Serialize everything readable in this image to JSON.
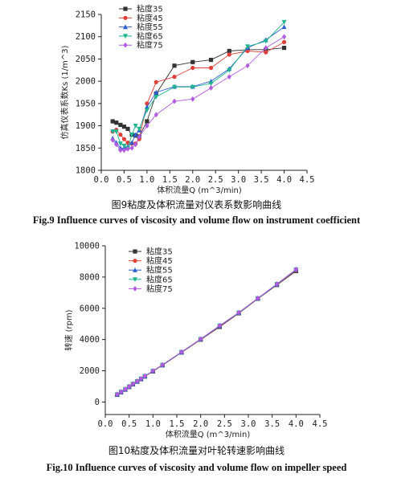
{
  "chart_data": [
    {
      "type": "line",
      "xlabel": "体积流量Q (m^3/min)",
      "ylabel": "仿真仪表系数Ks (1/m^3)",
      "xlim": [
        0.0,
        4.5
      ],
      "ylim": [
        1800,
        2150
      ],
      "xticks": [
        "0.0",
        "0.5",
        "1.0",
        "1.5",
        "2.0",
        "2.5",
        "3.0",
        "3.5",
        "4.0",
        "4.5"
      ],
      "yticks": [
        "1800",
        "1850",
        "1900",
        "1950",
        "2000",
        "2050",
        "2100",
        "2150"
      ],
      "legend_position": "top-left",
      "caption_cn": "图9粘度及体积流量对仪表系数影响曲线",
      "caption_en": "Fig.9    Influence curves of viscosity and volume flow on instrument coefficient",
      "series": [
        {
          "name": "粘度35",
          "color": "#333333",
          "marker": "square",
          "x": [
            0.25,
            0.33,
            0.42,
            0.5,
            0.58,
            0.67,
            0.75,
            0.83,
            1.0,
            1.2,
            1.6,
            2.0,
            2.4,
            2.8,
            3.2,
            3.6,
            4.0
          ],
          "y": [
            1910,
            1907,
            1902,
            1898,
            1893,
            1880,
            1878,
            1876,
            1910,
            1972,
            2035,
            2043,
            2048,
            2068,
            2071,
            2071,
            2075
          ]
        },
        {
          "name": "粘度45",
          "color": "#e0403a",
          "marker": "circle",
          "x": [
            0.25,
            0.33,
            0.42,
            0.5,
            0.58,
            0.67,
            0.75,
            0.83,
            1.0,
            1.2,
            1.6,
            2.0,
            2.4,
            2.8,
            3.2,
            3.6,
            4.0
          ],
          "y": [
            1887,
            1891,
            1880,
            1870,
            1862,
            1860,
            1860,
            1870,
            1950,
            1998,
            2010,
            2030,
            2030,
            2060,
            2068,
            2065,
            2088
          ]
        },
        {
          "name": "粘度55",
          "color": "#2d5fd0",
          "marker": "triangle-up",
          "x": [
            0.25,
            0.33,
            0.42,
            0.5,
            0.58,
            0.67,
            0.75,
            0.83,
            1.0,
            1.2,
            1.6,
            2.0,
            2.4,
            2.8,
            3.2,
            3.6,
            4.0
          ],
          "y": [
            1872,
            1862,
            1850,
            1850,
            1853,
            1862,
            1880,
            1890,
            1942,
            1975,
            1988,
            1988,
            2000,
            2028,
            2075,
            2093,
            2122
          ]
        },
        {
          "name": "粘度65",
          "color": "#1fb58f",
          "marker": "triangle-down",
          "x": [
            0.25,
            0.33,
            0.42,
            0.5,
            0.58,
            0.67,
            0.75,
            0.83,
            1.0,
            1.2,
            1.6,
            2.0,
            2.4,
            2.8,
            3.2,
            3.6,
            4.0
          ],
          "y": [
            1887,
            1887,
            1860,
            1855,
            1850,
            1880,
            1900,
            1893,
            1935,
            1965,
            1987,
            1987,
            1995,
            2025,
            2078,
            2090,
            2133
          ]
        },
        {
          "name": "粘度75",
          "color": "#b15be0",
          "marker": "diamond",
          "x": [
            0.25,
            0.33,
            0.42,
            0.5,
            0.58,
            0.67,
            0.75,
            0.83,
            1.0,
            1.2,
            1.6,
            2.0,
            2.4,
            2.8,
            3.2,
            3.6,
            4.0
          ],
          "y": [
            1868,
            1858,
            1845,
            1845,
            1848,
            1850,
            1858,
            1875,
            1900,
            1925,
            1955,
            1960,
            1985,
            2010,
            2035,
            2075,
            2100
          ]
        }
      ]
    },
    {
      "type": "line",
      "xlabel": "体积流量Q (m^3/min)",
      "ylabel": "转速 (rpm)",
      "xlim": [
        0.0,
        4.5
      ],
      "ylim": [
        -800,
        10000
      ],
      "xticks": [
        "0.0",
        "0.5",
        "1.0",
        "1.5",
        "2.0",
        "2.5",
        "3.0",
        "3.5",
        "4.0",
        "4.5"
      ],
      "yticks": [
        "0",
        "2000",
        "4000",
        "6000",
        "8000",
        "10000"
      ],
      "legend_position": "top-left",
      "caption_cn": "图10粘度及体积流量对叶轮转速影响曲线",
      "caption_en": "Fig.10 Influence curves of viscosity and volume flow on impeller speed",
      "series": [
        {
          "name": "粘度35",
          "color": "#333333",
          "marker": "square",
          "x": [
            0.25,
            0.33,
            0.42,
            0.5,
            0.58,
            0.67,
            0.75,
            0.83,
            1.0,
            1.2,
            1.6,
            2.0,
            2.4,
            2.8,
            3.2,
            3.6,
            4.0
          ],
          "y": [
            460,
            620,
            790,
            960,
            1130,
            1300,
            1460,
            1630,
            1960,
            2350,
            3170,
            3990,
            4810,
            5680,
            6610,
            7490,
            8380
          ]
        },
        {
          "name": "粘度45",
          "color": "#e0403a",
          "marker": "circle",
          "x": [
            0.25,
            0.33,
            0.42,
            0.5,
            0.58,
            0.67,
            0.75,
            0.83,
            1.0,
            1.2,
            1.6,
            2.0,
            2.4,
            2.8,
            3.2,
            3.6,
            4.0
          ],
          "y": [
            470,
            630,
            800,
            970,
            1140,
            1310,
            1470,
            1640,
            1970,
            2360,
            3180,
            4000,
            4840,
            5700,
            6620,
            7510,
            8420
          ]
        },
        {
          "name": "粘度55",
          "color": "#2d5fd0",
          "marker": "triangle-up",
          "x": [
            0.25,
            0.33,
            0.42,
            0.5,
            0.58,
            0.67,
            0.75,
            0.83,
            1.0,
            1.2,
            1.6,
            2.0,
            2.4,
            2.8,
            3.2,
            3.6,
            4.0
          ],
          "y": [
            480,
            640,
            810,
            980,
            1150,
            1320,
            1480,
            1650,
            1980,
            2370,
            3190,
            4020,
            4870,
            5710,
            6630,
            7530,
            8460
          ]
        },
        {
          "name": "粘度65",
          "color": "#1fb58f",
          "marker": "triangle-down",
          "x": [
            0.25,
            0.33,
            0.42,
            0.5,
            0.58,
            0.67,
            0.75,
            0.83,
            1.0,
            1.2,
            1.6,
            2.0,
            2.4,
            2.8,
            3.2,
            3.6,
            4.0
          ],
          "y": [
            490,
            650,
            820,
            990,
            1160,
            1330,
            1490,
            1660,
            1990,
            2380,
            3200,
            4030,
            4890,
            5720,
            6640,
            7550,
            8480
          ]
        },
        {
          "name": "粘度75",
          "color": "#b15be0",
          "marker": "diamond",
          "x": [
            0.25,
            0.33,
            0.42,
            0.5,
            0.58,
            0.67,
            0.75,
            0.83,
            1.0,
            1.2,
            1.6,
            2.0,
            2.4,
            2.8,
            3.2,
            3.6,
            4.0
          ],
          "y": [
            500,
            660,
            830,
            1000,
            1170,
            1340,
            1500,
            1670,
            2000,
            2390,
            3210,
            4040,
            4900,
            5730,
            6650,
            7560,
            8500
          ]
        }
      ]
    }
  ]
}
